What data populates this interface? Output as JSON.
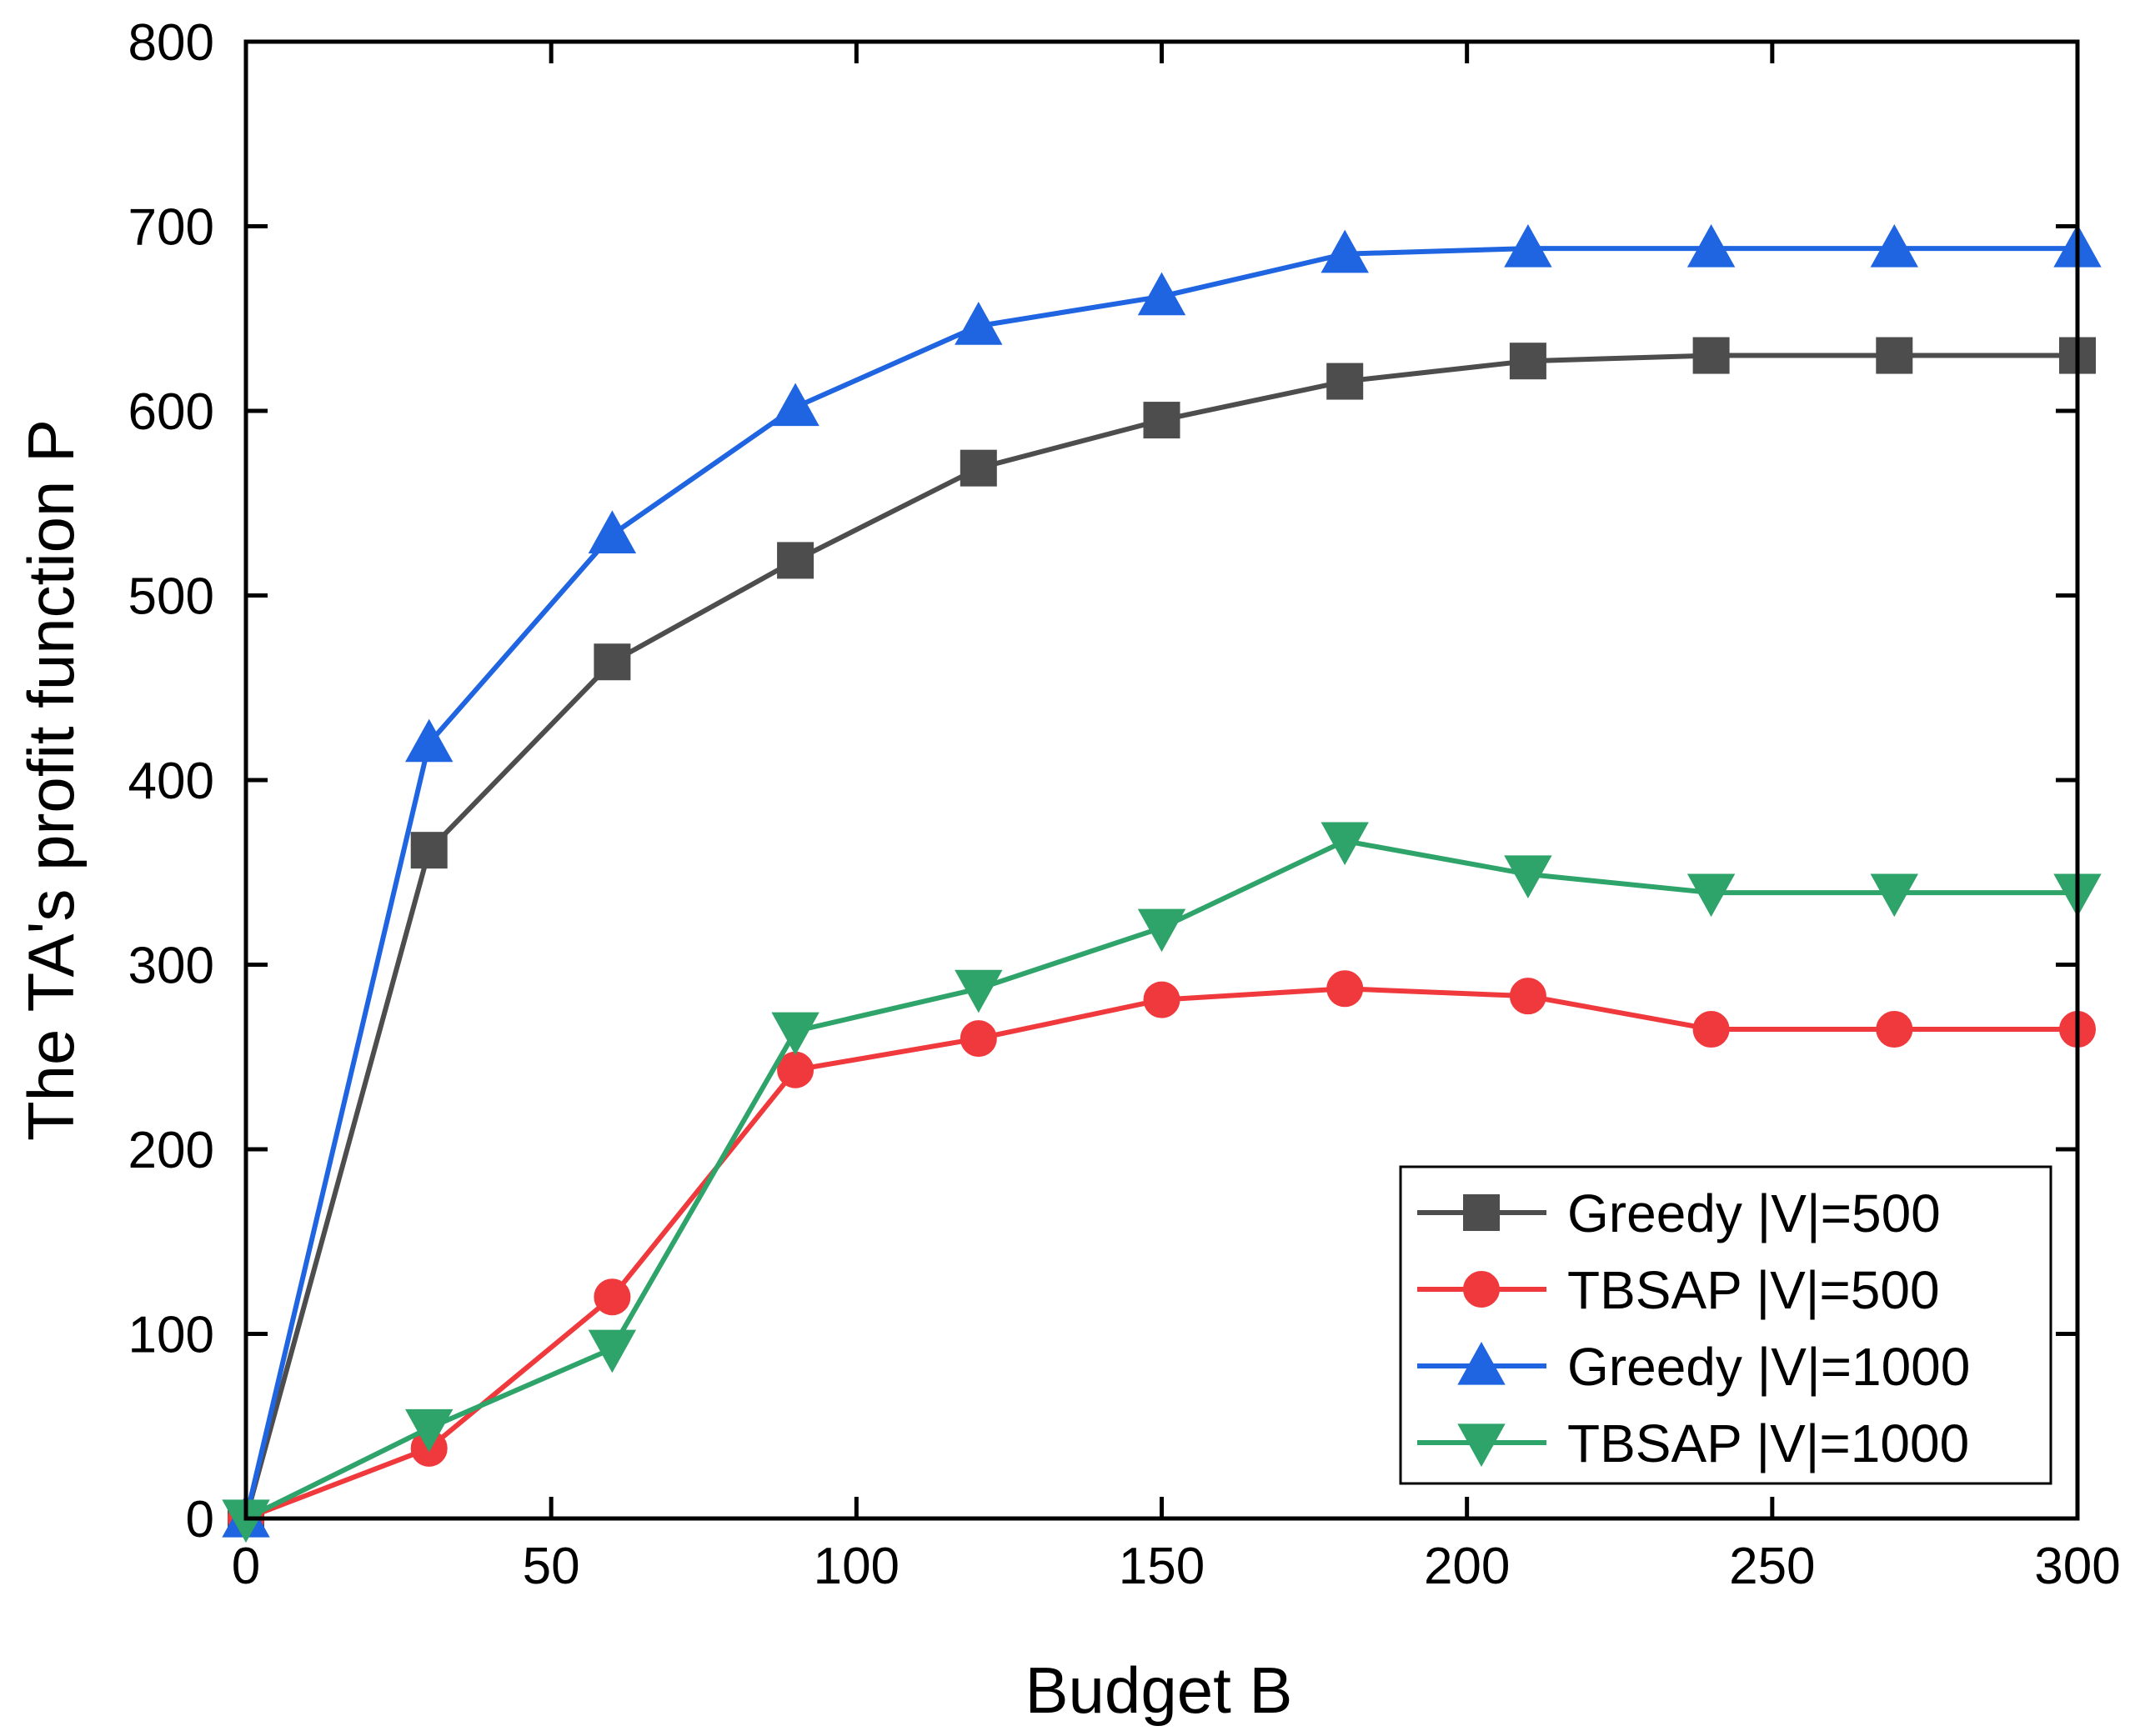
{
  "chart_data": {
    "type": "line",
    "title": "",
    "xlabel": "Budget B",
    "ylabel": "The TA's profit function P",
    "xlim": [
      0,
      300
    ],
    "ylim": [
      0,
      800
    ],
    "xticks": [
      0,
      50,
      100,
      150,
      200,
      250,
      300
    ],
    "yticks": [
      0,
      100,
      200,
      300,
      400,
      500,
      600,
      700,
      800
    ],
    "grid": false,
    "legend_position": "bottom-right",
    "x": [
      0,
      30,
      60,
      90,
      120,
      150,
      180,
      210,
      240,
      270,
      300
    ],
    "series": [
      {
        "name": "Greedy |V|=500",
        "marker": "square",
        "color": "#4d4d4d",
        "values": [
          0,
          362,
          464,
          519,
          569,
          595,
          616,
          627,
          630,
          630,
          630
        ]
      },
      {
        "name": "TBSAP |V|=500",
        "marker": "circle",
        "color": "#f0393c",
        "values": [
          0,
          38,
          120,
          243,
          260,
          281,
          287,
          283,
          265,
          265,
          265
        ]
      },
      {
        "name": "Greedy |V|=1000",
        "marker": "triangle-up",
        "color": "#1f64e0",
        "values": [
          0,
          420,
          533,
          602,
          646,
          662,
          685,
          688,
          688,
          688,
          688
        ]
      },
      {
        "name": "TBSAP |V|=1000",
        "marker": "triangle-down",
        "color": "#2ea36a",
        "values": [
          0,
          49,
          92,
          264,
          287,
          320,
          367,
          349,
          339,
          339,
          339
        ]
      }
    ]
  }
}
